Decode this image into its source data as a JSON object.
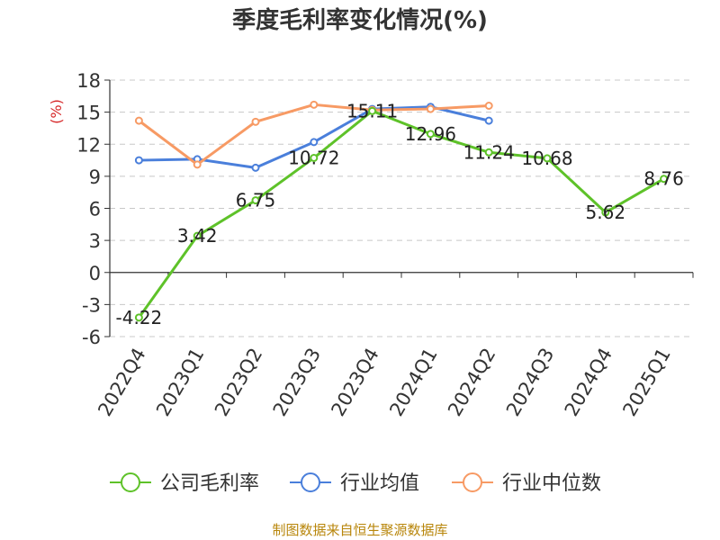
{
  "chart_data": {
    "type": "line",
    "title": "季度毛利率变化情况(%)",
    "ylabel": "(%)",
    "xlabel": "",
    "ylim": [
      -6,
      18
    ],
    "yticks": [
      18,
      15,
      12,
      9,
      6,
      3,
      0,
      -3,
      -6
    ],
    "categories": [
      "2022Q4",
      "2023Q1",
      "2023Q2",
      "2023Q3",
      "2023Q4",
      "2024Q1",
      "2024Q2",
      "2024Q3",
      "2024Q4",
      "2025Q1"
    ],
    "grid": true,
    "legend_position": "bottom",
    "series": [
      {
        "name": "公司毛利率",
        "color": "#5ec229",
        "values": [
          -4.22,
          3.42,
          6.75,
          10.72,
          15.11,
          12.96,
          11.24,
          10.68,
          5.62,
          8.76
        ],
        "labels": [
          "-4.22",
          "3.42",
          "6.75",
          "10.72",
          "15.11",
          "12.96",
          "11.24",
          "10.68",
          "5.62",
          "8.76"
        ]
      },
      {
        "name": "行业均值",
        "color": "#4a7fdb",
        "values": [
          10.5,
          10.6,
          9.8,
          12.2,
          15.3,
          15.5,
          14.2,
          null,
          null,
          null
        ]
      },
      {
        "name": "行业中位数",
        "color": "#f79a64",
        "values": [
          14.2,
          10.1,
          14.1,
          15.7,
          15.2,
          15.3,
          15.6,
          null,
          null,
          null
        ]
      }
    ]
  },
  "source_note": "制图数据来自恒生聚源数据库"
}
